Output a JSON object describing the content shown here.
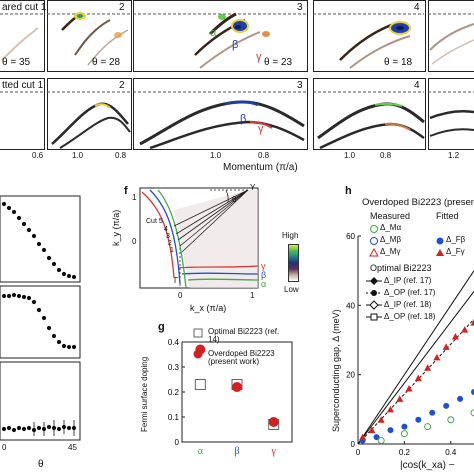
{
  "top": {
    "measured_row_label": "ared cut 1",
    "fitted_row_label": "tted cut 1",
    "panel_numbers": [
      "2",
      "3",
      "4"
    ],
    "theta_labels": [
      "θ = 35",
      "θ = 28",
      "θ = 23",
      "θ = 18"
    ],
    "band_labels_measured": [
      "α",
      "β",
      "γ"
    ],
    "band_labels_fitted": [
      "β",
      "γ"
    ],
    "x_ticks": [
      {
        "panel": "a",
        "labels": [
          "0.6"
        ]
      },
      {
        "panel": "b",
        "labels": [
          "1.0",
          "0.8"
        ]
      },
      {
        "panel": "c",
        "labels": [
          "1.0",
          "0.8"
        ]
      },
      {
        "panel": "d",
        "labels": [
          "1.0",
          "0.8"
        ]
      },
      {
        "panel": "e",
        "labels": [
          "1.2"
        ]
      }
    ],
    "x_axis_label": "Momentum (π/a)",
    "colors": {
      "dash": "#666666",
      "intensity_dark": "#3a2418",
      "green": "#66cc44",
      "blue": "#1f3ea8",
      "red": "#d43a3a",
      "yellow": "#e8c840"
    }
  },
  "left_plots": {
    "x_ticks": [
      "0",
      "45"
    ],
    "x_axis_label": "θ"
  },
  "panel_f": {
    "label": "f",
    "ylabel": "k_y (π/a)",
    "xlabel": "k_x (π/a)",
    "y_ticks": [
      "1",
      "0"
    ],
    "x_ticks": [
      "0",
      "1"
    ],
    "cut_labels": [
      "Cut 5",
      "4",
      "3",
      "2",
      "1"
    ],
    "point_labels": [
      "Y",
      "Γ"
    ],
    "theta_symbol": "θ",
    "band_labels": [
      "γ",
      "β",
      "α"
    ],
    "colorbar": {
      "high": "High",
      "low": "Low"
    }
  },
  "panel_g": {
    "label": "g",
    "ylabel": "Fermi surface doping",
    "legend": [
      "Optimal Bi2223 (ref. 14)",
      "Overdoped Bi2223 (present work)"
    ],
    "chart_data": {
      "type": "scatter",
      "categories": [
        "α",
        "β",
        "γ"
      ],
      "ylim": [
        0,
        0.4
      ],
      "y_ticks": [
        "0",
        "0.1",
        "0.2",
        "0.3",
        "0.4"
      ],
      "series": [
        {
          "name": "Optimal Bi2223 (ref. 14)",
          "marker": "open-square",
          "values": [
            0.23,
            0.23,
            0.07
          ]
        },
        {
          "name": "Overdoped Bi2223 (present work)",
          "marker": "filled-circle",
          "color": "#d42020",
          "values": [
            0.37,
            0.22,
            0.08
          ]
        }
      ]
    }
  },
  "panel_h": {
    "label": "h",
    "title": "Overdoped Bi2223 (present",
    "measured_label": "Measured",
    "fitted_label": "Fitted",
    "measured_legend": [
      "Δ_Mα",
      "Δ_Mβ",
      "Δ_Mγ"
    ],
    "fitted_legend": [
      "Δ_Fβ",
      "Δ_Fγ"
    ],
    "optimal_title": "Optimal Bi2223",
    "optimal_legend": [
      "Δ_IP (ref. 17)",
      "Δ_OP (ref. 17)",
      "Δ_IP (ref. 18)",
      "Δ_OP (ref. 18)"
    ],
    "ylabel": "Superconducting gap, Δ (meV)",
    "xlabel": "|cos(k_xa) −",
    "chart_data": {
      "type": "scatter",
      "xlim": [
        0,
        0.5
      ],
      "ylim": [
        0,
        60
      ],
      "x_ticks": [
        "0",
        "0.2",
        "0.4"
      ],
      "y_ticks": [
        "0",
        "20",
        "40",
        "60"
      ],
      "series": [
        {
          "name": "Δ_Fβ",
          "color": "#2050d0",
          "points": [
            [
              0.02,
              1
            ],
            [
              0.08,
              2
            ],
            [
              0.14,
              4
            ],
            [
              0.2,
              5
            ],
            [
              0.26,
              7
            ],
            [
              0.32,
              9
            ],
            [
              0.38,
              11
            ],
            [
              0.44,
              13
            ],
            [
              0.5,
              15
            ]
          ]
        },
        {
          "name": "Δ_Fγ",
          "color": "#d42020",
          "points": [
            [
              0.02,
              2
            ],
            [
              0.06,
              4
            ],
            [
              0.1,
              7
            ],
            [
              0.14,
              10
            ],
            [
              0.18,
              13
            ],
            [
              0.22,
              16
            ],
            [
              0.26,
              19
            ],
            [
              0.3,
              22
            ],
            [
              0.34,
              25
            ],
            [
              0.38,
              28
            ],
            [
              0.42,
              31
            ],
            [
              0.46,
              33
            ],
            [
              0.5,
              35
            ]
          ]
        },
        {
          "name": "Δ_Mα",
          "color": "#44aa44",
          "points": [
            [
              0.1,
              1
            ],
            [
              0.2,
              3
            ],
            [
              0.3,
              5
            ],
            [
              0.4,
              7
            ],
            [
              0.5,
              9
            ]
          ]
        }
      ]
    }
  }
}
